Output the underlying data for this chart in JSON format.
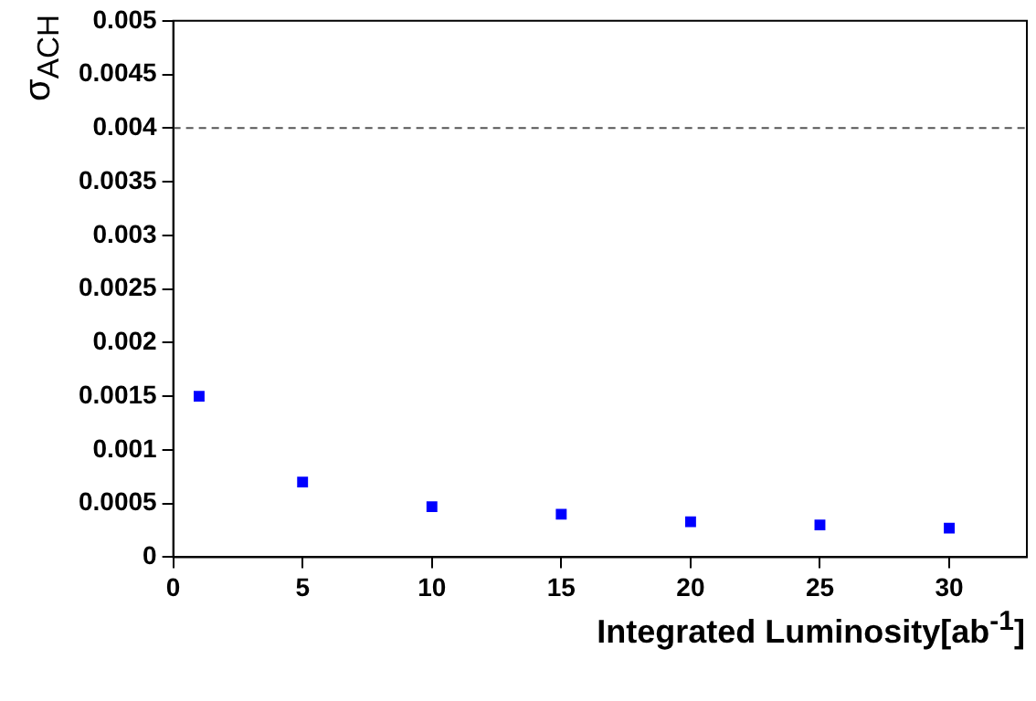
{
  "chart_data": {
    "type": "scatter",
    "xlabel": "Integrated Luminosity[ab$^{-1}$]",
    "ylabel": "σ$_{ACH}$",
    "x": [
      1,
      5,
      10,
      15,
      20,
      25,
      30
    ],
    "series": [
      {
        "color": "#0000ff",
        "values": [
          0.0015,
          0.0007,
          0.00047,
          0.0004,
          0.00033,
          0.0003,
          0.00027
        ]
      }
    ],
    "xlim": [
      0,
      33
    ],
    "xticks": [
      0,
      5,
      10,
      15,
      20,
      25,
      30
    ],
    "ylim": [
      0,
      0.005
    ],
    "yticks": [
      0,
      0.0005,
      0.001,
      0.0015,
      0.002,
      0.0025,
      0.003,
      0.0035,
      0.004,
      0.0045,
      0.005
    ],
    "ref_lines": [
      {
        "axis": "y",
        "value": 0.004,
        "line_style": "dashed",
        "color": "#555555"
      }
    ],
    "marker": "square",
    "grid": false,
    "legend": false
  }
}
